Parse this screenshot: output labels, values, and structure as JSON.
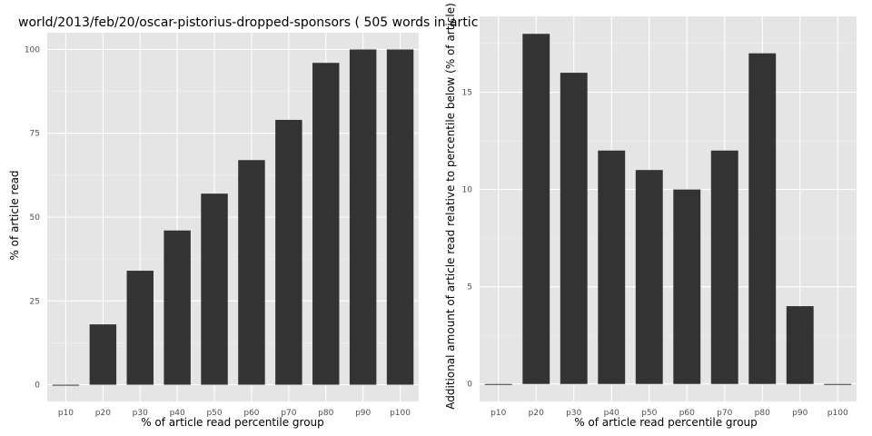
{
  "chart_data": [
    {
      "type": "bar",
      "title": "world/2013/feb/20/oscar-pistorius-dropped-sponsors ( 505 words in artic",
      "xlabel": "% of article read percentile group",
      "ylabel": "% of article read",
      "categories": [
        "p10",
        "p20",
        "p30",
        "p40",
        "p50",
        "p60",
        "p70",
        "p80",
        "p90",
        "p100"
      ],
      "values": [
        0,
        18,
        34,
        46,
        57,
        67,
        79,
        96,
        100,
        100
      ],
      "ylim": [
        -5,
        105
      ],
      "yticks": [
        0,
        25,
        50,
        75,
        100
      ],
      "grid": true,
      "background": "#e5e5e5",
      "bar_color": "#333333"
    },
    {
      "type": "bar",
      "title": "",
      "xlabel": "% of article read percentile group",
      "ylabel": "Additional amount of article read relative to percentile below (% of article)",
      "categories": [
        "p10",
        "p20",
        "p30",
        "p40",
        "p50",
        "p60",
        "p70",
        "p80",
        "p90",
        "p100"
      ],
      "values": [
        0,
        18,
        16,
        12,
        11,
        10,
        12,
        17,
        4,
        0
      ],
      "ylim": [
        -0.9,
        18.9
      ],
      "yticks": [
        0,
        5,
        10,
        15
      ],
      "grid": true,
      "background": "#e5e5e5",
      "bar_color": "#333333"
    }
  ]
}
